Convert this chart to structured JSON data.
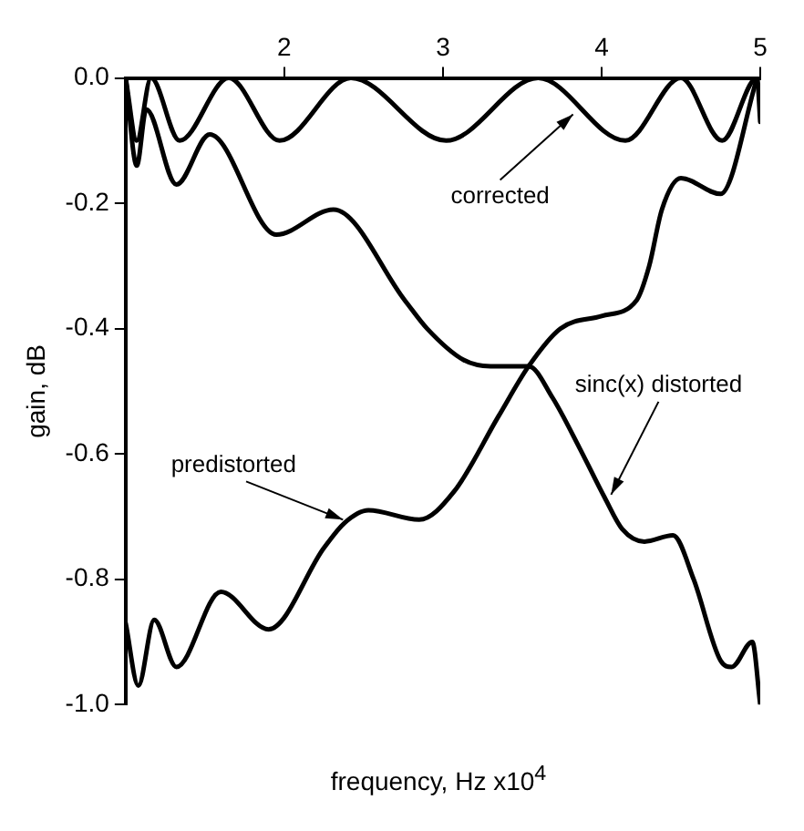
{
  "chart_data": {
    "type": "line",
    "xlabel": "frequency, Hz x10$^{4}$",
    "ylabel": "gain, dB",
    "xlim": [
      1,
      5
    ],
    "xticks": [
      2,
      3,
      4,
      5
    ],
    "ylim": [
      -1.0,
      0
    ],
    "yticks": [
      {
        "value": 0,
        "label": "0.0"
      },
      {
        "value": -0.2,
        "label": "-0.2"
      },
      {
        "value": -0.4,
        "label": "-0.4"
      },
      {
        "value": -0.6,
        "label": "-0.6"
      },
      {
        "value": -0.8,
        "label": "-0.8"
      },
      {
        "value": -1.0,
        "label": "-1.0"
      }
    ],
    "grid": false,
    "legend": false,
    "marker": "none",
    "line_style": "solid",
    "series": [
      {
        "color": "#000000",
        "x": [
          1.0,
          1.07,
          1.16,
          1.34,
          1.65,
          1.97,
          2.42,
          3.02,
          3.6,
          4.15,
          4.5,
          4.76,
          4.98,
          5.0
        ],
        "values": [
          0,
          -0.1,
          0,
          -0.1,
          0,
          -0.1,
          0,
          -0.1,
          0,
          -0.1,
          0,
          -0.1,
          0,
          -0.07
        ]
      },
      {
        "color": "#000000",
        "x": [
          1.0,
          1.07,
          1.13,
          1.32,
          1.53,
          1.95,
          2.31,
          2.76,
          2.9,
          3.13,
          3.3,
          3.54,
          3.69,
          3.86,
          4.02,
          4.13,
          4.27,
          4.45,
          4.58,
          4.75,
          4.82,
          4.95,
          5.0
        ],
        "values": [
          0,
          -0.14,
          -0.05,
          -0.17,
          -0.09,
          -0.25,
          -0.21,
          -0.355,
          -0.4,
          -0.45,
          -0.46,
          -0.46,
          -0.51,
          -0.59,
          -0.67,
          -0.72,
          -0.74,
          -0.73,
          -0.8,
          -0.93,
          -0.94,
          -0.9,
          -1.0
        ]
      },
      {
        "color": "#000000",
        "x": [
          1.0,
          1.08,
          1.18,
          1.32,
          1.6,
          1.9,
          2.25,
          2.38,
          2.53,
          2.85,
          3.07,
          3.35,
          3.54,
          3.74,
          4.0,
          4.22,
          4.3,
          4.38,
          4.5,
          4.75,
          4.98
        ],
        "values": [
          -0.87,
          -0.97,
          -0.865,
          -0.94,
          -0.82,
          -0.88,
          -0.75,
          -0.71,
          -0.69,
          -0.705,
          -0.66,
          -0.54,
          -0.46,
          -0.4,
          -0.38,
          -0.355,
          -0.3,
          -0.21,
          -0.16,
          -0.185,
          0
        ]
      }
    ],
    "annotations": [
      {
        "text": "corrected",
        "x": 3.82,
        "y": -0.058
      },
      {
        "text": "predistorted",
        "x": 2.37,
        "y": -0.705
      },
      {
        "text": "sinc(x) distorted",
        "x": 4.06,
        "y": -0.665
      }
    ]
  }
}
